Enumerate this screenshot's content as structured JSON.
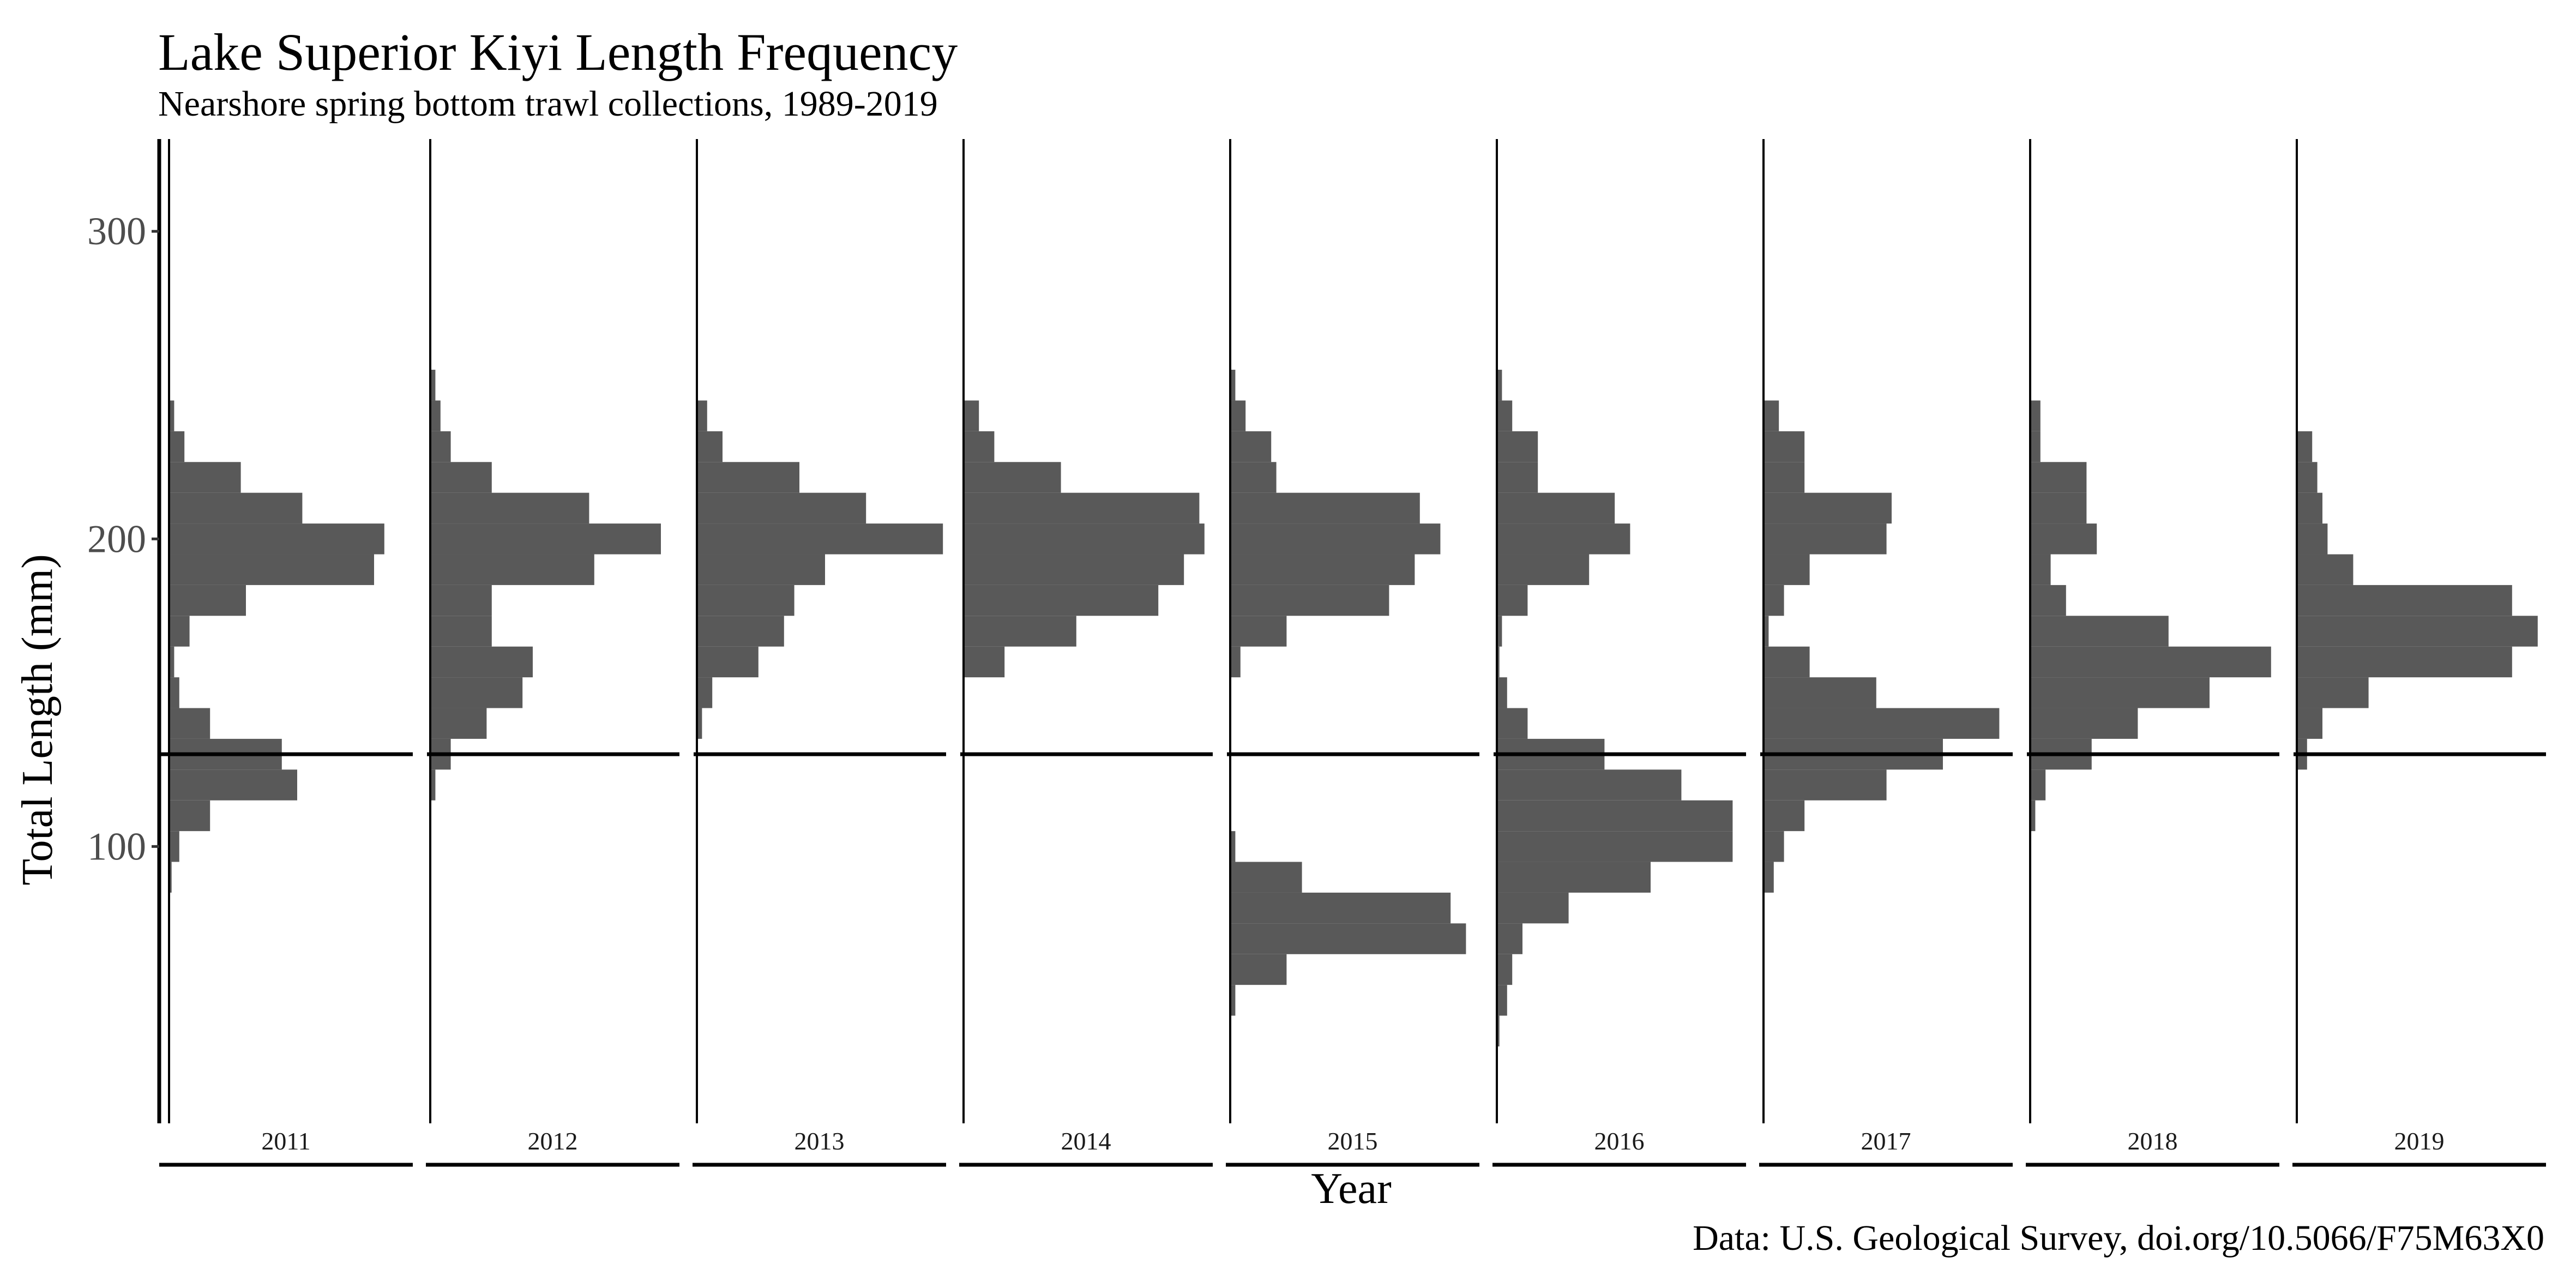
{
  "chart_data": {
    "type": "bar",
    "orientation": "horizontal-histogram-panels",
    "title": "Lake Superior Kiyi Length Frequency",
    "subtitle": "Nearshore spring bottom trawl collections, 1989-2019",
    "xlabel": "Year",
    "ylabel": "Total Length (mm)",
    "caption": "Data: U.S. Geological Survey, doi.org/10.5066/F75M63X0",
    "ylim": [
      10,
      330
    ],
    "yticks": [
      100,
      200,
      300
    ],
    "bin_width_mm": 10,
    "reference_line_mm": 130,
    "grid": false,
    "bin_centers": [
      30,
      40,
      50,
      60,
      70,
      80,
      90,
      100,
      110,
      120,
      130,
      140,
      150,
      160,
      170,
      180,
      190,
      200,
      210,
      220,
      230,
      240,
      250,
      260,
      270
    ],
    "panels": [
      {
        "year": "2011",
        "counts": [
          0,
          0,
          0,
          0,
          0,
          0,
          0.5,
          2,
          8,
          25,
          22,
          8,
          2,
          1,
          4,
          15,
          40,
          42,
          26,
          14,
          3,
          1,
          0,
          0,
          0
        ]
      },
      {
        "year": "2012",
        "counts": [
          0,
          0,
          0,
          0,
          0,
          0,
          0,
          0,
          0,
          1,
          4,
          11,
          18,
          20,
          12,
          12,
          32,
          45,
          31,
          12,
          4,
          2,
          1,
          0,
          0
        ]
      },
      {
        "year": "2013",
        "counts": [
          0,
          0,
          0,
          0,
          0,
          0,
          0,
          0,
          0,
          0,
          0,
          1,
          3,
          12,
          17,
          19,
          25,
          48,
          33,
          20,
          5,
          2,
          0,
          0,
          0
        ]
      },
      {
        "year": "2014",
        "counts": [
          0,
          0,
          0,
          0,
          0,
          0,
          0,
          0,
          0,
          0,
          0,
          0,
          0,
          8,
          22,
          38,
          43,
          47,
          46,
          19,
          6,
          3,
          0,
          0,
          0
        ]
      },
      {
        "year": "2015",
        "counts": [
          0,
          0,
          1,
          11,
          46,
          43,
          14,
          1,
          0,
          0,
          0,
          0,
          0,
          2,
          11,
          31,
          36,
          41,
          37,
          9,
          8,
          3,
          1,
          0,
          0
        ]
      },
      {
        "year": "2016",
        "counts": [
          0,
          0.5,
          2,
          3,
          5,
          14,
          30,
          46,
          46,
          36,
          21,
          6,
          2,
          0.5,
          1,
          6,
          18,
          26,
          23,
          8,
          8,
          3,
          1,
          0,
          0
        ]
      },
      {
        "year": "2017",
        "counts": [
          0,
          0,
          0,
          0,
          0,
          0,
          2,
          4,
          8,
          24,
          35,
          46,
          22,
          9,
          1,
          4,
          9,
          24,
          25,
          8,
          8,
          3,
          0,
          0,
          0
        ]
      },
      {
        "year": "2018",
        "counts": [
          0,
          0,
          0,
          0,
          0,
          0,
          0,
          0,
          1,
          3,
          12,
          21,
          35,
          47,
          27,
          7,
          4,
          13,
          11,
          11,
          2,
          2,
          0,
          0,
          0
        ]
      },
      {
        "year": "2019",
        "counts": [
          0,
          0,
          0,
          0,
          0,
          0,
          0,
          0,
          0,
          0,
          2,
          5,
          14,
          42,
          47,
          42,
          11,
          6,
          5,
          4,
          3,
          0,
          0,
          0,
          0
        ]
      }
    ]
  }
}
